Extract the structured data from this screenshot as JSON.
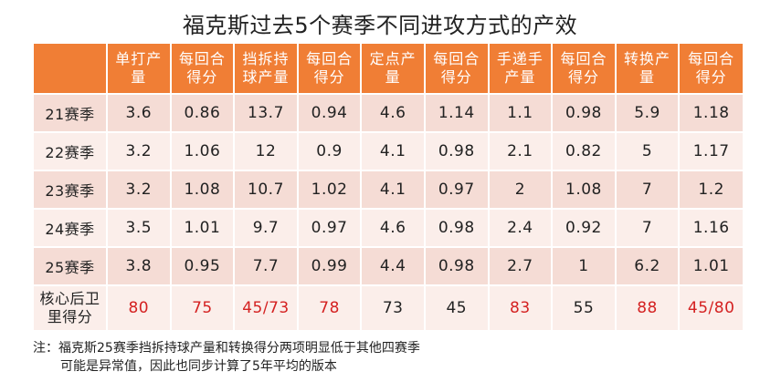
{
  "title": "福克斯过去5个赛季不同进攻方式的产效",
  "headers": [
    "",
    "单打产量",
    "每回合得分",
    "挡拆持球产量",
    "每回合得分",
    "定点产量",
    "每回合得分",
    "手递手产量",
    "每回合得分",
    "转换产量",
    "每回合得分"
  ],
  "rows": [
    {
      "label": "21赛季",
      "values": [
        "3.6",
        "0.86",
        "13.7",
        "0.94",
        "4.6",
        "1.14",
        "1.1",
        "0.98",
        "5.9",
        "1.18"
      ]
    },
    {
      "label": "22赛季",
      "values": [
        "3.2",
        "1.06",
        "12",
        "0.9",
        "4.1",
        "0.98",
        "2.1",
        "0.82",
        "5",
        "1.17"
      ]
    },
    {
      "label": "23赛季",
      "values": [
        "3.2",
        "1.08",
        "10.7",
        "1.02",
        "4.1",
        "0.97",
        "2",
        "1.08",
        "7",
        "1.2"
      ]
    },
    {
      "label": "24赛季",
      "values": [
        "3.5",
        "1.01",
        "9.7",
        "0.97",
        "4.6",
        "0.98",
        "2.4",
        "0.92",
        "7",
        "1.16"
      ]
    },
    {
      "label": "25赛季",
      "values": [
        "3.8",
        "0.95",
        "7.7",
        "0.99",
        "4.4",
        "0.98",
        "2.7",
        "1",
        "6.2",
        "1.01"
      ]
    }
  ],
  "summary": {
    "label": "核心后卫里得分",
    "values": [
      "80",
      "75",
      "45/73",
      "78",
      "73",
      "45",
      "83",
      "55",
      "88",
      "45/80"
    ],
    "highlight_color": "#d42121"
  },
  "note": {
    "line1": "注：福克斯25赛季挡拆持球产量和转换得分两项明显低于其他四赛季",
    "line2": "可能是异常值，因此也同步计算了5年平均的版本"
  },
  "colors": {
    "header_bg": "#f07e35",
    "row_bg_dark": "#f5dcd5",
    "row_bg_light": "#fbeeea"
  }
}
